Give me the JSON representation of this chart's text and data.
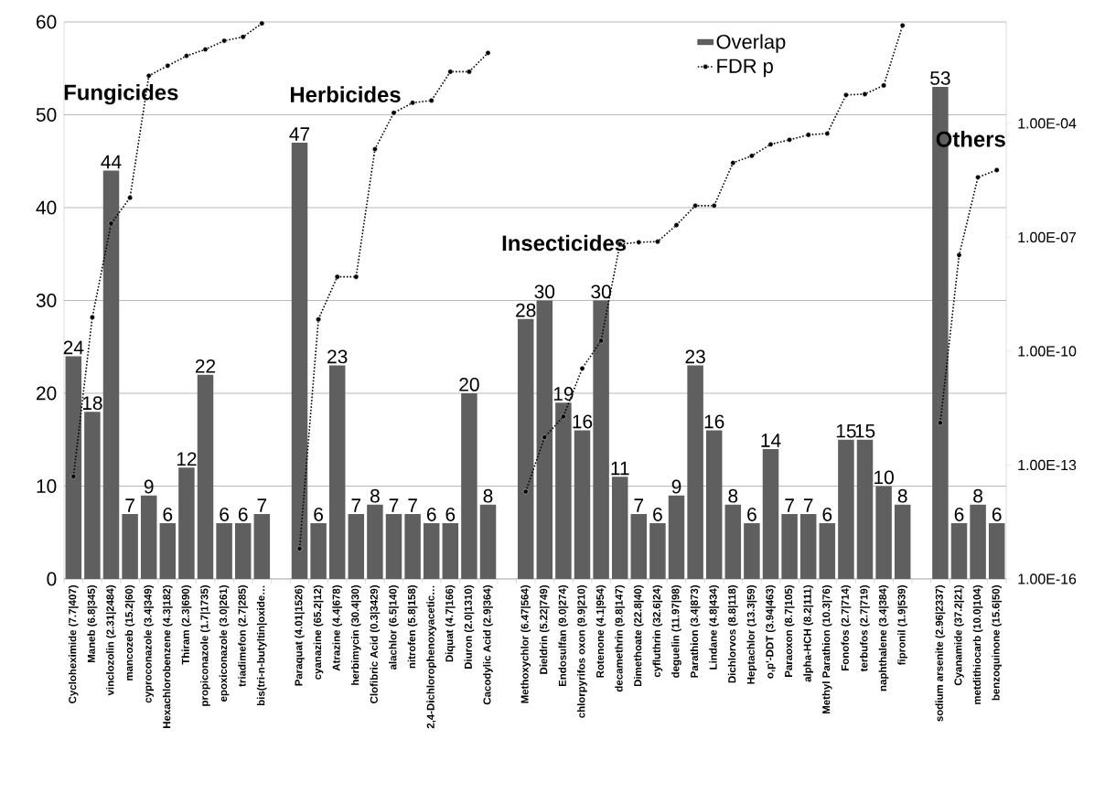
{
  "chart_data": {
    "type": "bar",
    "categories": [
      "Cycloheximide (7.7|407)",
      "Maneb (6.8|345)",
      "vinclozolin (2.31|2484)",
      "mancozeb (15.2|60)",
      "cyproconazole (3.4|349)",
      "Hexachlorobenzene (4.3|182)",
      "Thiram (2.3|690)",
      "propiconazole (1.7|1735)",
      "epoxiconazole (3.0|261)",
      "triadimefon (2.7|285)",
      "bis(tri-n-butyltin|oxide…",
      null,
      "Paraquat (4.01|1526)",
      "cyanazine (65.2|12)",
      "Atrazine (4.4|678)",
      "herbimycin (30.4|30)",
      "Clofibric Acid (0.3|3429)",
      "alachlor (6.5|140)",
      "nitrofen (5.8|158)",
      "2,4-Dichlorophenoxyacetic…",
      "Diquat (4.7|166)",
      "Diuron (2.0|1310)",
      "Cacodylic Acid (2.9|364)",
      null,
      "Methoxychlor (6.47|564)",
      "Dieldrin (5.22|749)",
      "Endosulfan (9.0|274)",
      "chlorpyrifos oxon (9.9|210)",
      "Rotenone (4.1|954)",
      "decamethrin (9.8|147)",
      "Dimethoate (22.8|40)",
      "cyfluthrin (32.6|24)",
      "deguelin (11.97|98)",
      "Parathion (3.4|873)",
      "Lindane (4.8|434)",
      "Dichlorvos (8.8|118)",
      "Heptachlor (13.3|59)",
      "o,p'-DDT (3.94|463)",
      "Paraoxon (8.7|105)",
      "alpha-HCH (8.2|111)",
      "Methyl Parathion (10.3|76)",
      "Fonofos (2.7|714)",
      "terbufos (2.7|719)",
      "naphthalene (3.4|384)",
      "fipronil (1.9|539)",
      null,
      "sodium arsenite (2.96|2337)",
      "Cyanamide (37.2|21)",
      "metdithiocarb (10.0|104)",
      "benzoquinone (15.6|50)"
    ],
    "series": [
      {
        "name": "Overlap",
        "color": "#5f5f5f",
        "values": [
          24,
          18,
          44,
          7,
          9,
          6,
          12,
          22,
          6,
          6,
          7,
          null,
          47,
          6,
          23,
          7,
          8,
          7,
          7,
          6,
          6,
          20,
          8,
          null,
          28,
          30,
          19,
          16,
          30,
          11,
          7,
          6,
          9,
          23,
          16,
          8,
          6,
          14,
          7,
          7,
          6,
          15,
          15,
          10,
          8,
          null,
          53,
          6,
          8,
          6
        ],
        "value_labels": [
          "24",
          "18",
          "44",
          "7",
          "9",
          "6",
          "12",
          "22",
          "6",
          "6",
          "7",
          null,
          "47",
          "6",
          "23",
          "7",
          "8",
          "7",
          "7",
          "6",
          "6",
          "20",
          "8",
          null,
          "28",
          "30",
          "19",
          "16",
          "30",
          "11",
          "7",
          "6",
          "9",
          "23",
          "16",
          "8",
          "6",
          "14",
          "7",
          "7",
          "6",
          "15",
          "15",
          "10",
          "8",
          null,
          "53",
          "6",
          "8",
          "6"
        ]
      },
      {
        "name": "FDR p",
        "type": "line",
        "axis": "y2",
        "color": "#000000",
        "values": [
          5e-14,
          7.8e-10,
          2.3e-07,
          1.1e-06,
          0.0018,
          0.0033,
          0.006,
          0.0089,
          0.015,
          0.019,
          0.043,
          null,
          6.3e-16,
          6.9e-10,
          9.1e-09,
          9.1e-09,
          2.1e-05,
          0.00019,
          0.00035,
          0.0004,
          0.0023,
          0.0023,
          0.0072,
          null,
          2e-14,
          5.4e-13,
          1.9e-12,
          3.5e-11,
          1.9e-10,
          6.6e-08,
          7.4e-08,
          7.7e-08,
          2.1e-07,
          6.8e-07,
          6.8e-07,
          9.1e-06,
          1.4e-05,
          2.8e-05,
          3.7e-05,
          5e-05,
          5.4e-05,
          0.00056,
          0.00059,
          0.001,
          0.038,
          null,
          1.3e-12,
          3.4e-08,
          3.8e-06,
          5.9e-06
        ]
      }
    ],
    "ylim": [
      0,
      60
    ],
    "yticks": [
      0,
      10,
      20,
      30,
      40,
      50,
      60
    ],
    "y2lim": [
      1e-16,
      0.047
    ],
    "y2ticks": [
      {
        "value": 1e-16,
        "label": "1.00E-16"
      },
      {
        "value": 1e-13,
        "label": "1.00E-13"
      },
      {
        "value": 1e-10,
        "label": "1.00E-10"
      },
      {
        "value": 1e-07,
        "label": "1.00E-07"
      },
      {
        "value": 0.0001,
        "label": "1.00E-04"
      }
    ],
    "log": "y2",
    "grid": "y",
    "legend": "top",
    "marker": "circle",
    "line_style": "dotted",
    "annotations": [
      "Fungicides",
      "Herbicides",
      "Insecticides",
      "Others"
    ]
  }
}
